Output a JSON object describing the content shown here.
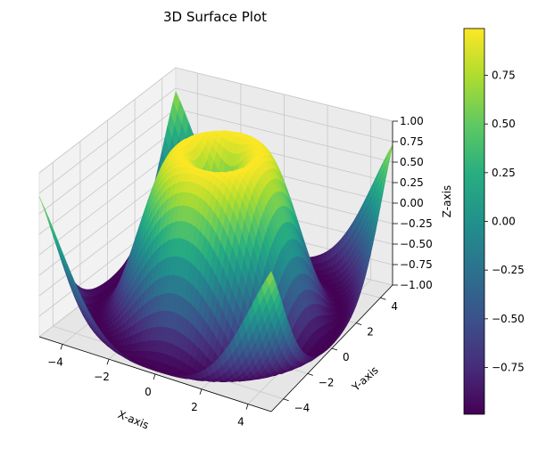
{
  "chart_data": {
    "type": "surface3d",
    "title": "3D Surface Plot",
    "xlabel": "X-axis",
    "ylabel": "Y-axis",
    "zlabel": "Z-axis",
    "function": "sin(sqrt(x^2 + y^2))",
    "xlim": [
      -5,
      5
    ],
    "ylim": [
      -5,
      5
    ],
    "zlim": [
      -1,
      1
    ],
    "x_ticks": [
      "−4",
      "−2",
      "0",
      "2",
      "4"
    ],
    "y_ticks": [
      "−4",
      "−2",
      "0",
      "2",
      "4"
    ],
    "z_ticks": [
      "−1.00",
      "−0.75",
      "−0.50",
      "−0.25",
      "0.00",
      "0.25",
      "0.50",
      "0.75",
      "1.00"
    ],
    "grid": true,
    "colormap": "viridis",
    "colorbar": {
      "range": [
        -0.99,
        0.99
      ],
      "ticks": [
        "−0.75",
        "−0.50",
        "−0.25",
        "0.00",
        "0.25",
        "0.50",
        "0.75"
      ]
    }
  }
}
